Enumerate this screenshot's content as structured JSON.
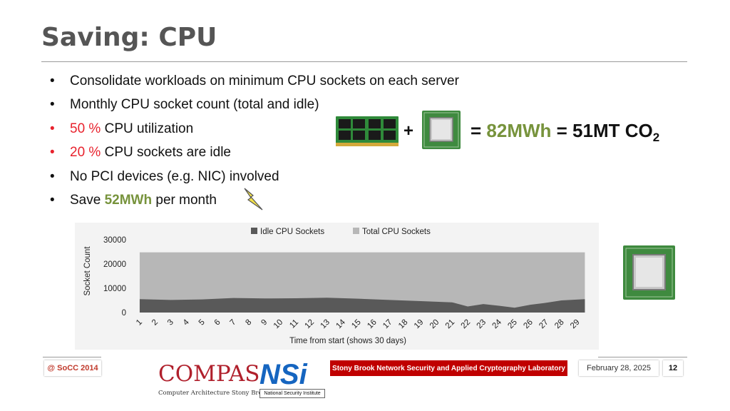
{
  "slide": {
    "title": "Saving: CPU"
  },
  "bullets": [
    {
      "text": "Consolidate workloads on minimum CPU sockets on each server"
    },
    {
      "text": "Monthly CPU socket count (total and idle)"
    },
    {
      "highlight": "50 %",
      "text": " CPU utilization"
    },
    {
      "highlight": "20 %",
      "text": " CPU sockets are idle"
    },
    {
      "text": "No PCI devices (e.g. NIC) involved"
    },
    {
      "prefix": "Save ",
      "highlight": "52MWh",
      "suffix": " per month"
    }
  ],
  "equation": {
    "plus": "+",
    "prefix": "= ",
    "energy": "82MWh",
    "middle": " = 51MT CO",
    "subscript": "2"
  },
  "chart_data": {
    "type": "area",
    "title": "",
    "xlabel": "Time from start (shows 30 days)",
    "ylabel": "Socket Count",
    "ylim": [
      0,
      30000
    ],
    "yticks": [
      "0",
      "10000",
      "20000",
      "30000"
    ],
    "x_ticks": [
      "1",
      "2",
      "3",
      "4",
      "5",
      "6",
      "7",
      "8",
      "9",
      "10",
      "11",
      "12",
      "13",
      "14",
      "15",
      "16",
      "17",
      "18",
      "19",
      "20",
      "21",
      "22",
      "23",
      "24",
      "25",
      "26",
      "27",
      "28",
      "29"
    ],
    "legend_position": "top",
    "series": [
      {
        "name": "Idle CPU Sockets",
        "color": "#595959",
        "x": [
          1,
          3,
          5,
          7,
          9,
          11,
          13,
          15,
          17,
          19,
          21,
          22,
          23,
          24,
          25,
          26,
          27,
          28,
          29.5
        ],
        "values": [
          5500,
          5200,
          5400,
          6000,
          5800,
          5900,
          6100,
          5700,
          5200,
          4700,
          4200,
          2500,
          3500,
          2800,
          2000,
          3200,
          4000,
          5000,
          5500
        ]
      },
      {
        "name": "Total CPU Sockets",
        "color": "#b7b7b7",
        "x": [
          1,
          29.5
        ],
        "values": [
          24800,
          24800
        ]
      }
    ],
    "grid": false
  },
  "footer": {
    "event": "@ SoCC 2014",
    "lab": "Stony Brook Network Security and Applied Cryptography Laboratory",
    "date": "February 28, 2025",
    "page": "12",
    "compas_word": "COMPAS",
    "compas_sub": "Computer Architecture Stony Brook",
    "nsi_word": "NSi",
    "nsi_sub": "National Security Institute"
  }
}
